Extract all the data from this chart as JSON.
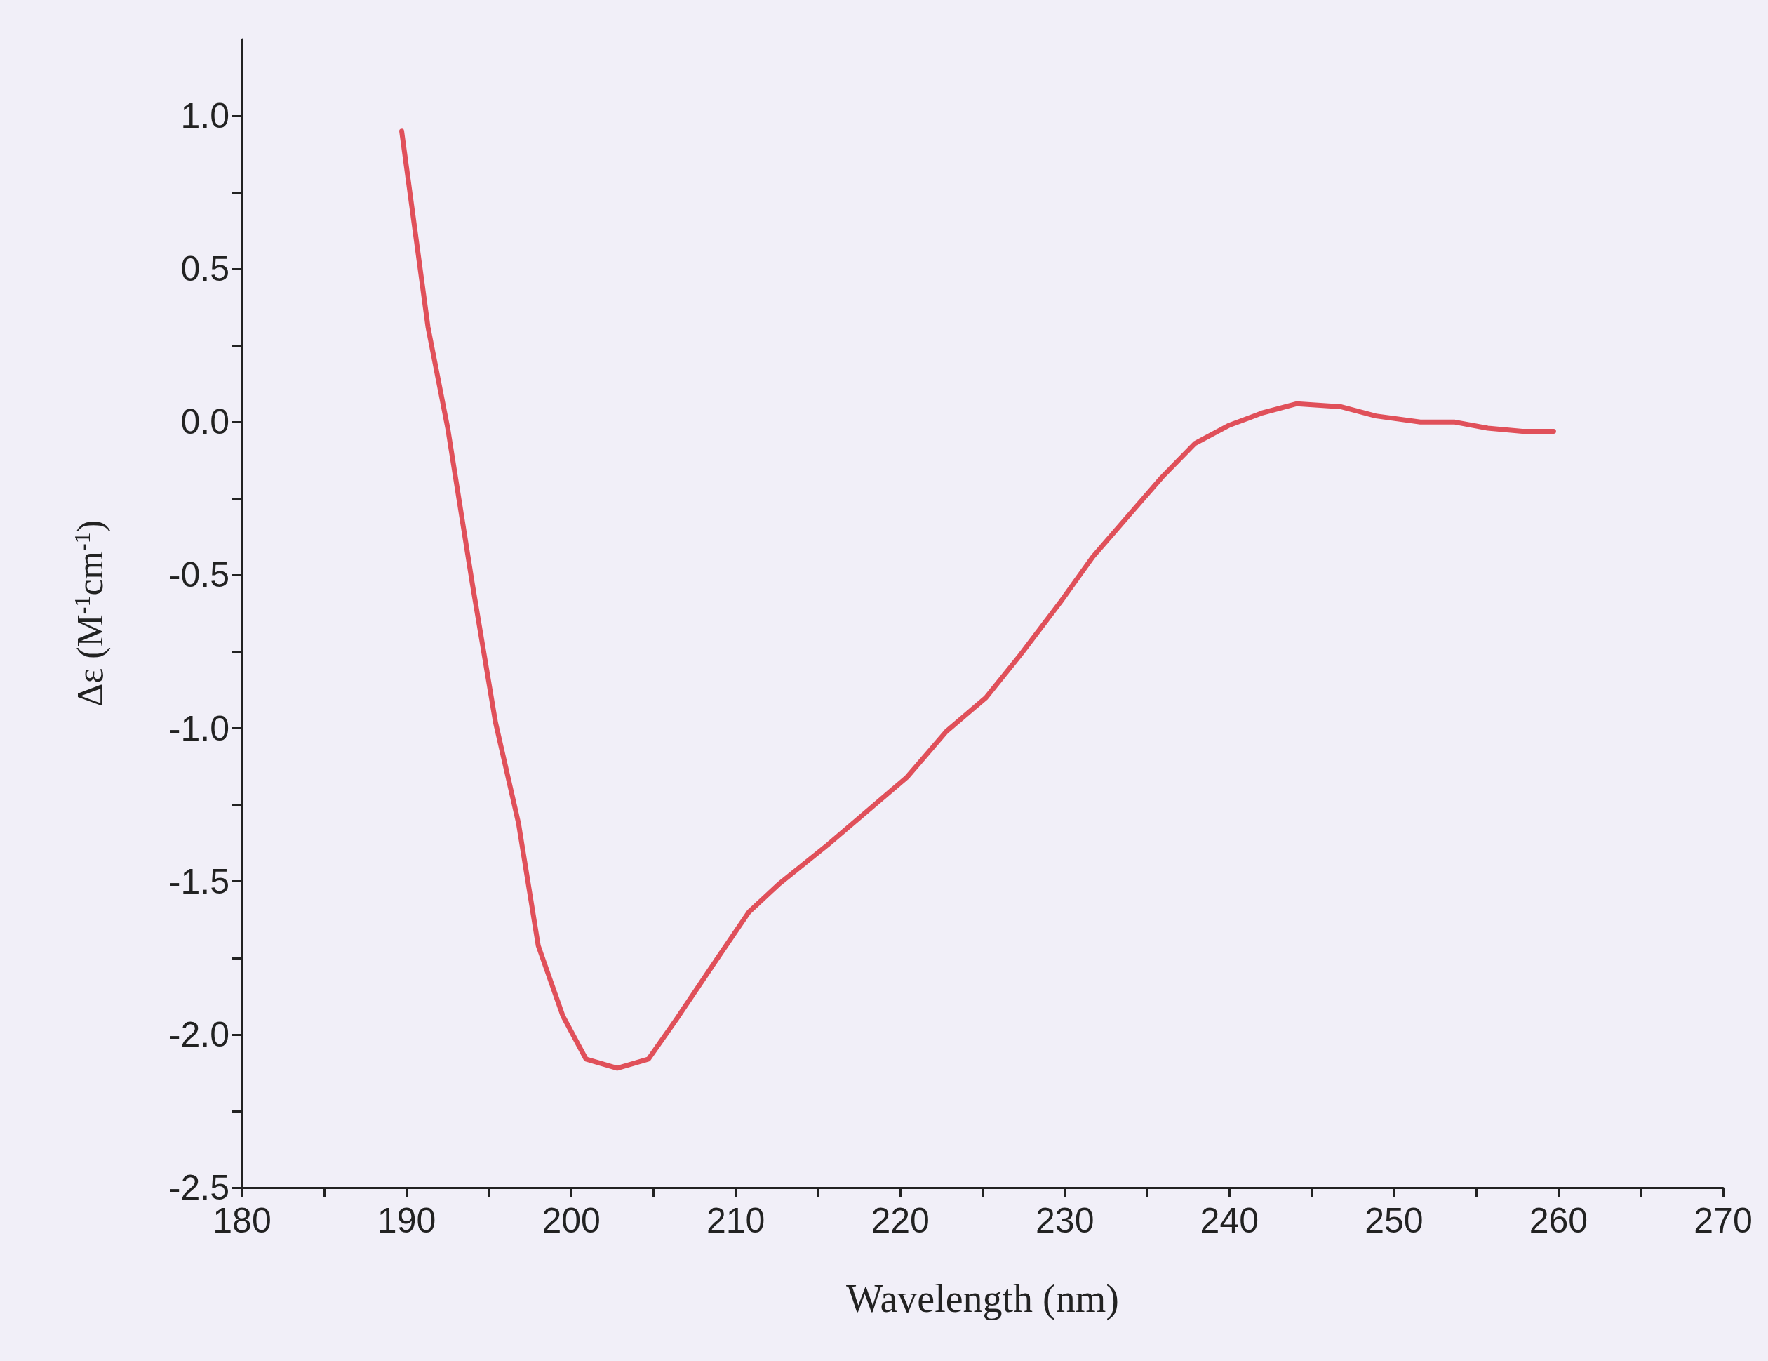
{
  "chart_data": {
    "type": "line",
    "xlabel": "Wavelength (nm)",
    "ylabel": "Δε (M$^{-1}$cm$^{-1}$)",
    "x": [
      189.7,
      191.3,
      192.5,
      194,
      195.4,
      196.8,
      198,
      199.5,
      200.9,
      202.8,
      204.7,
      206.4,
      208.4,
      210.8,
      212.6,
      215.6,
      218,
      220.4,
      222.8,
      225.2,
      227.3,
      229.7,
      231.7,
      233.8,
      235.9,
      237.9,
      240,
      242,
      244.1,
      246.8,
      248.9,
      251.6,
      253.7,
      255.7,
      257.8,
      259.7
    ],
    "series": [
      {
        "color": "#e0505a",
        "values": [
          0.95,
          0.31,
          -0.02,
          -0.53,
          -0.98,
          -1.31,
          -1.71,
          -1.94,
          -2.08,
          -2.11,
          -2.08,
          -1.95,
          -1.79,
          -1.6,
          -1.51,
          -1.38,
          -1.27,
          -1.16,
          -1.01,
          -0.9,
          -0.76,
          -0.59,
          -0.44,
          -0.31,
          -0.18,
          -0.07,
          -0.01,
          0.03,
          0.06,
          0.05,
          0.02,
          0.0,
          0.0,
          -0.02,
          -0.03,
          -0.03
        ]
      }
    ],
    "xlim": [
      180,
      270
    ],
    "xticks": [
      180,
      {
        "value": 185,
        "label": null
      },
      190,
      {
        "value": 195,
        "label": null
      },
      200,
      {
        "value": 205,
        "label": null
      },
      210,
      {
        "value": 215,
        "label": null
      },
      220,
      {
        "value": 225,
        "label": null
      },
      230,
      {
        "value": 235,
        "label": null
      },
      240,
      {
        "value": 245,
        "label": null
      },
      250,
      {
        "value": 255,
        "label": null
      },
      260,
      {
        "value": 265,
        "label": null
      },
      270
    ],
    "ylim": [
      -2.5,
      1.25
    ],
    "yticks": [
      {
        "value": -2.5,
        "label": "-2.5"
      },
      {
        "value": -2.25,
        "label": null
      },
      {
        "value": -2,
        "label": "-2.0"
      },
      {
        "value": -1.75,
        "label": null
      },
      {
        "value": -1.5,
        "label": "-1.5"
      },
      {
        "value": -1.25,
        "label": null
      },
      {
        "value": -1,
        "label": "-1.0"
      },
      {
        "value": -0.75,
        "label": null
      },
      {
        "value": -0.5,
        "label": "-0.5"
      },
      {
        "value": -0.25,
        "label": null
      },
      {
        "value": 0,
        "label": "0.0"
      },
      {
        "value": 0.25,
        "label": null
      },
      {
        "value": 0.5,
        "label": "0.5"
      },
      {
        "value": 0.75,
        "label": null
      },
      {
        "value": 1,
        "label": "1.0"
      }
    ],
    "marker": "none",
    "line_style": "solid"
  }
}
